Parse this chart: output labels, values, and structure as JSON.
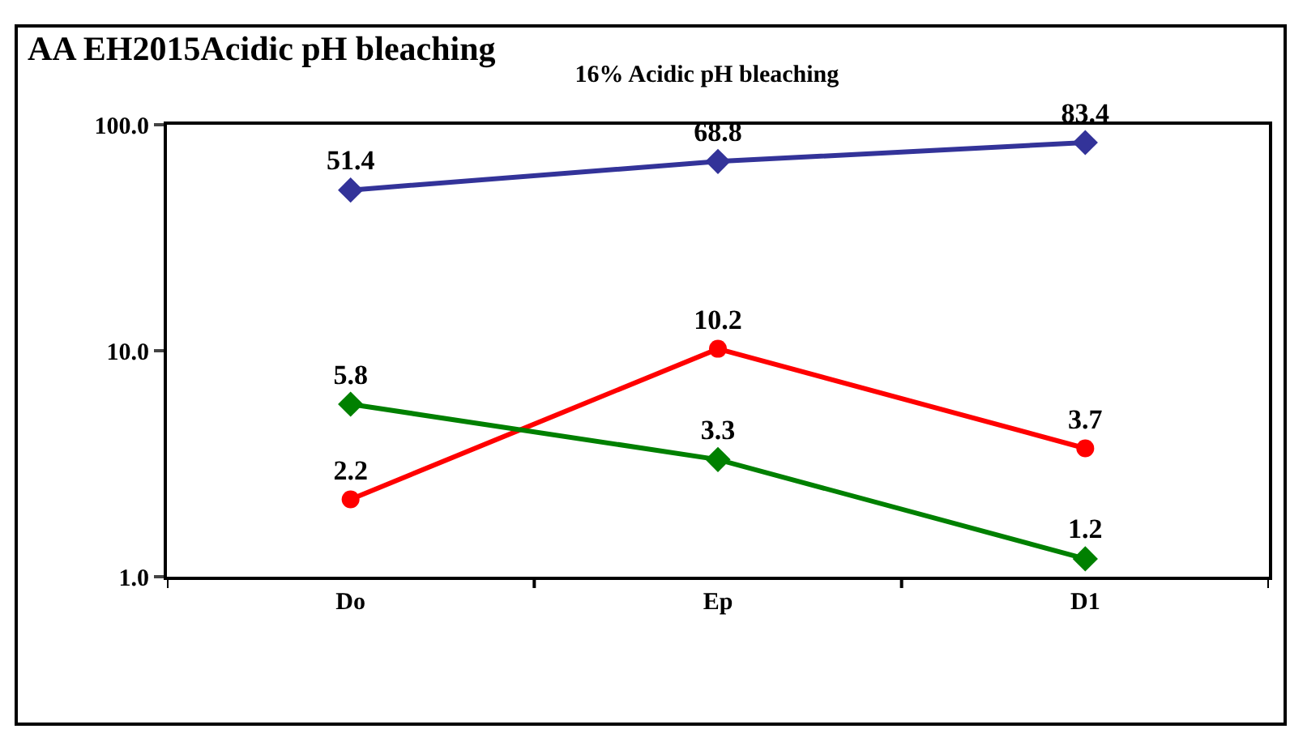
{
  "chart_data": {
    "type": "line",
    "title": "16% Acidic pH bleaching",
    "annotations": [
      "AA EH2015Acidic pH bleaching"
    ],
    "categories": [
      "Do",
      "Ep",
      "D1"
    ],
    "series": [
      {
        "color": "#333399",
        "values": [
          51.4,
          68.8,
          83.4
        ],
        "marker": "diamond"
      },
      {
        "color": "#ff0000",
        "values": [
          2.2,
          10.2,
          3.7
        ],
        "marker": "circle"
      },
      {
        "color": "#008000",
        "values": [
          5.8,
          3.3,
          1.2
        ],
        "marker": "diamond"
      }
    ],
    "log": true,
    "ylim": [
      1,
      100
    ],
    "yticks": [
      {
        "value": 1,
        "label": "1.0"
      },
      {
        "value": 10,
        "label": "10.0"
      },
      {
        "value": 100,
        "label": "100.0"
      }
    ],
    "grid": false,
    "legend": false,
    "data_labels": true,
    "line_style": "solid"
  }
}
